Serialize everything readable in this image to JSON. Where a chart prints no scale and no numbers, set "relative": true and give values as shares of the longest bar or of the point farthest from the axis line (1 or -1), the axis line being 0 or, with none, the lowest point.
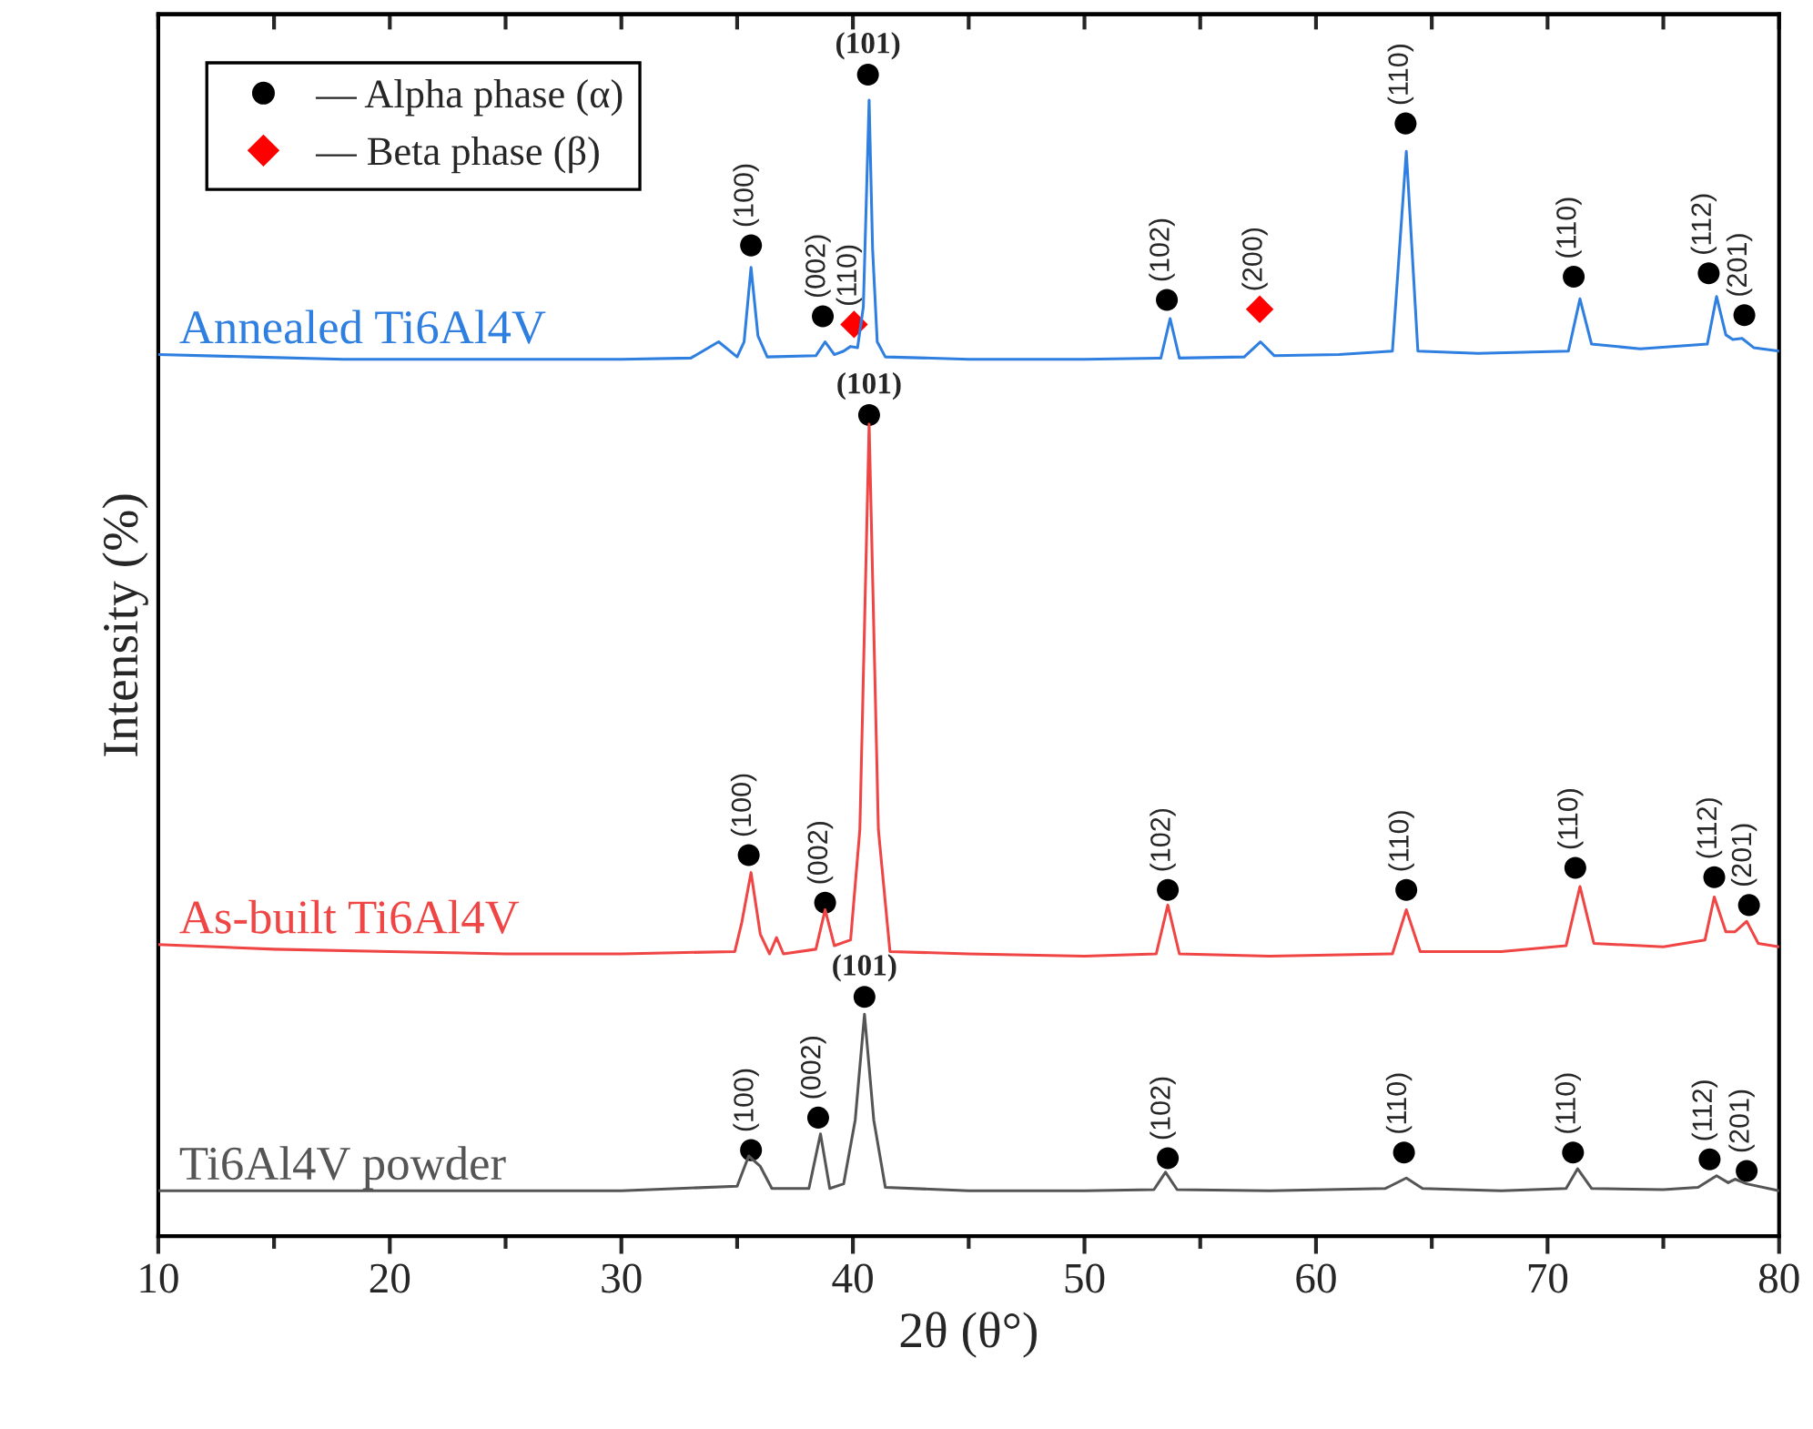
{
  "chart_data": {
    "type": "line",
    "relative": true,
    "xlabel": "2θ (θ°)",
    "ylabel": "Intensity (%)",
    "xlim": [
      10,
      80
    ],
    "xticks": [
      10,
      20,
      30,
      40,
      50,
      60,
      70,
      80
    ],
    "tick_labels": "x",
    "grid": false,
    "legend": "top left",
    "series": [
      {
        "name": "Annealed Ti6Al4V",
        "color": "#2f7fe0",
        "x": [
          10,
          14,
          18,
          22,
          26,
          30,
          33,
          34.2,
          35.0,
          35.3,
          35.6,
          35.9,
          36.3,
          38.4,
          38.8,
          39.2,
          39.6,
          39.9,
          40.2,
          40.45,
          40.7,
          40.85,
          41.05,
          41.4,
          45,
          50,
          53.3,
          53.7,
          54.1,
          56.9,
          57.6,
          58.2,
          61,
          63.3,
          63.9,
          64.4,
          67,
          70.9,
          71.4,
          71.9,
          74,
          76.9,
          77.3,
          77.7,
          78.0,
          78.4,
          78.9,
          80
        ],
        "values": [
          0.759,
          0.757,
          0.755,
          0.755,
          0.755,
          0.755,
          0.756,
          0.77,
          0.757,
          0.77,
          0.834,
          0.775,
          0.757,
          0.758,
          0.77,
          0.759,
          0.762,
          0.766,
          0.765,
          0.8,
          0.978,
          0.85,
          0.77,
          0.757,
          0.755,
          0.755,
          0.756,
          0.79,
          0.756,
          0.757,
          0.77,
          0.758,
          0.759,
          0.762,
          0.934,
          0.762,
          0.76,
          0.762,
          0.807,
          0.768,
          0.764,
          0.768,
          0.809,
          0.776,
          0.772,
          0.773,
          0.765,
          0.762
        ]
      },
      {
        "name": "As-built Ti6Al4V",
        "color": "#f04545",
        "x": [
          10,
          15,
          20,
          25,
          30,
          34.9,
          35.2,
          35.6,
          36.0,
          36.4,
          36.7,
          37.0,
          38.4,
          38.8,
          39.2,
          39.9,
          40.3,
          40.7,
          41.1,
          41.6,
          45,
          50,
          53.1,
          53.6,
          54.1,
          58,
          63.3,
          63.9,
          64.5,
          68,
          70.8,
          71.4,
          72.0,
          75,
          76.8,
          77.2,
          77.7,
          78.1,
          78.6,
          79.1,
          80
        ],
        "values": [
          0.251,
          0.247,
          0.245,
          0.243,
          0.243,
          0.245,
          0.27,
          0.313,
          0.26,
          0.243,
          0.257,
          0.243,
          0.247,
          0.281,
          0.25,
          0.255,
          0.35,
          0.699,
          0.35,
          0.245,
          0.243,
          0.241,
          0.243,
          0.285,
          0.243,
          0.241,
          0.243,
          0.281,
          0.245,
          0.245,
          0.25,
          0.301,
          0.252,
          0.249,
          0.255,
          0.292,
          0.262,
          0.262,
          0.271,
          0.252,
          0.249
        ]
      },
      {
        "name": "Ti6Al4V powder",
        "color": "#555555",
        "x": [
          10,
          15,
          20,
          25,
          30,
          35.0,
          35.5,
          36.0,
          36.5,
          38.1,
          38.6,
          39.0,
          39.6,
          40.1,
          40.5,
          40.9,
          41.4,
          45,
          50,
          53.0,
          53.5,
          54.0,
          58,
          63.0,
          63.9,
          64.6,
          68,
          70.8,
          71.3,
          71.9,
          75,
          76.5,
          77.3,
          77.8,
          78.1,
          78.6,
          80
        ],
        "values": [
          0.039,
          0.039,
          0.039,
          0.039,
          0.039,
          0.043,
          0.069,
          0.06,
          0.041,
          0.041,
          0.088,
          0.041,
          0.045,
          0.1,
          0.191,
          0.1,
          0.042,
          0.039,
          0.039,
          0.04,
          0.055,
          0.04,
          0.039,
          0.041,
          0.05,
          0.041,
          0.039,
          0.041,
          0.058,
          0.041,
          0.04,
          0.042,
          0.052,
          0.046,
          0.049,
          0.045,
          0.039
        ]
      },
      {
        "name": "— Alpha phase (α)",
        "type": "scatter",
        "marker": "circle",
        "color": "#000000",
        "x": [
          35.6,
          38.7,
          40.65,
          53.56,
          63.87,
          71.13,
          76.96,
          78.5,
          35.5,
          38.8,
          40.7,
          53.6,
          63.9,
          71.2,
          77.2,
          78.7,
          35.6,
          38.5,
          40.5,
          53.6,
          63.8,
          71.1,
          77.0,
          78.6
        ],
        "values": [
          0.853,
          0.792,
          1.0,
          0.806,
          0.958,
          0.826,
          0.829,
          0.793,
          0.328,
          0.287,
          0.707,
          0.298,
          0.298,
          0.317,
          0.309,
          0.285,
          0.074,
          0.102,
          0.206,
          0.067,
          0.072,
          0.072,
          0.066,
          0.056
        ]
      },
      {
        "name": "— Beta phase (β)",
        "type": "scatter",
        "marker": "diamond",
        "color": "#ff0000",
        "x": [
          40.05,
          57.57
        ],
        "values": [
          0.785,
          0.798
        ]
      }
    ],
    "annotations": [
      {
        "text": "(100)",
        "x": 35.6,
        "y": 0.853
      },
      {
        "text": "(002)",
        "x": 38.7,
        "y": 0.792
      },
      {
        "text": "(101)",
        "x": 40.65,
        "y": 1.0
      },
      {
        "text": "(102)",
        "x": 53.56,
        "y": 0.806
      },
      {
        "text": "(110)",
        "x": 63.87,
        "y": 0.958
      },
      {
        "text": "(110)",
        "x": 71.13,
        "y": 0.826
      },
      {
        "text": "(112)",
        "x": 76.96,
        "y": 0.829
      },
      {
        "text": "(201)",
        "x": 78.5,
        "y": 0.793
      },
      {
        "text": "(110)",
        "x": 40.05,
        "y": 0.785
      },
      {
        "text": "(200)",
        "x": 57.57,
        "y": 0.798
      },
      {
        "text": "(100)",
        "x": 35.5,
        "y": 0.328
      },
      {
        "text": "(002)",
        "x": 38.8,
        "y": 0.287
      },
      {
        "text": "(101)",
        "x": 40.7,
        "y": 0.707
      },
      {
        "text": "(102)",
        "x": 53.6,
        "y": 0.298
      },
      {
        "text": "(110)",
        "x": 63.9,
        "y": 0.298
      },
      {
        "text": "(110)",
        "x": 71.2,
        "y": 0.317
      },
      {
        "text": "(112)",
        "x": 77.2,
        "y": 0.309
      },
      {
        "text": "(201)",
        "x": 78.7,
        "y": 0.285
      },
      {
        "text": "(100)",
        "x": 35.6,
        "y": 0.074
      },
      {
        "text": "(002)",
        "x": 38.5,
        "y": 0.102
      },
      {
        "text": "(101)",
        "x": 40.5,
        "y": 0.206
      },
      {
        "text": "(102)",
        "x": 53.6,
        "y": 0.067
      },
      {
        "text": "(110)",
        "x": 63.8,
        "y": 0.072
      },
      {
        "text": "(110)",
        "x": 71.1,
        "y": 0.072
      },
      {
        "text": "(112)",
        "x": 77.0,
        "y": 0.066
      },
      {
        "text": "(201)",
        "x": 78.6,
        "y": 0.056
      }
    ]
  }
}
